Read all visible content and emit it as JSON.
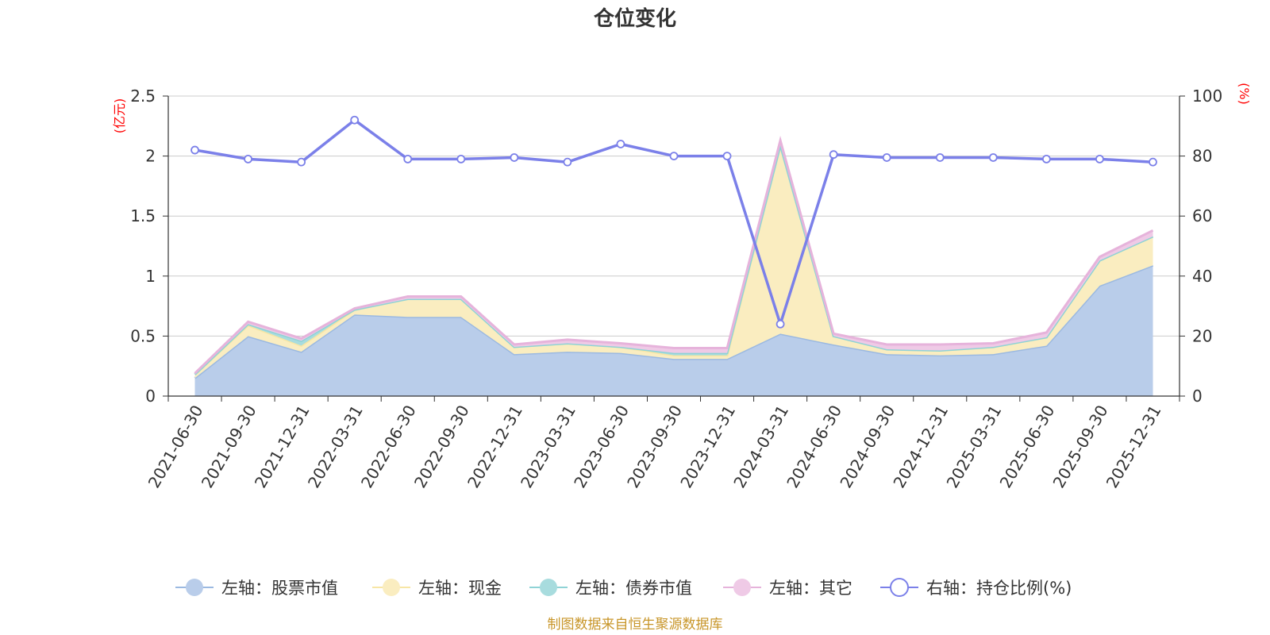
{
  "chart_data": {
    "type": "area",
    "title": "仓位变化",
    "y_left_unit": "(亿元)",
    "y_right_unit": "(%)",
    "ylim_left": [
      0,
      2.5
    ],
    "ylim_right": [
      0,
      100
    ],
    "y_left_ticks": [
      "0",
      "0.5",
      "1",
      "1.5",
      "2",
      "2.5"
    ],
    "y_right_ticks": [
      "0",
      "20",
      "40",
      "60",
      "80",
      "100"
    ],
    "categories": [
      "2021-06-30",
      "2021-09-30",
      "2021-12-31",
      "2022-03-31",
      "2022-06-30",
      "2022-09-30",
      "2022-12-31",
      "2023-03-31",
      "2023-06-30",
      "2023-09-30",
      "2023-12-31",
      "2024-03-31",
      "2024-06-30",
      "2024-09-30",
      "2024-12-31",
      "2025-03-31",
      "2025-06-30",
      "2025-09-30",
      "2025-12-31"
    ],
    "series": [
      {
        "name": "左轴：股票市值",
        "axis": "left",
        "stack": true,
        "color": "#9bb9e1",
        "fill": "#b9cdea",
        "values": [
          0.15,
          0.5,
          0.37,
          0.68,
          0.66,
          0.66,
          0.35,
          0.37,
          0.36,
          0.31,
          0.31,
          0.52,
          0.43,
          0.35,
          0.34,
          0.35,
          0.42,
          0.92,
          1.09
        ]
      },
      {
        "name": "左轴：现金",
        "axis": "left",
        "stack": true,
        "color": "#f7e6a5",
        "fill": "#faedc0",
        "values": [
          0.03,
          0.09,
          0.05,
          0.04,
          0.15,
          0.15,
          0.06,
          0.07,
          0.05,
          0.03,
          0.03,
          1.57,
          0.07,
          0.04,
          0.04,
          0.06,
          0.07,
          0.21,
          0.24
        ]
      },
      {
        "name": "左轴：债券市值",
        "axis": "left",
        "stack": true,
        "color": "#8fd3d6",
        "fill": "#a8dcde",
        "values": [
          0.0,
          0.01,
          0.04,
          0.0,
          0.0,
          0.0,
          0.0,
          0.0,
          0.0,
          0.02,
          0.02,
          0.0,
          0.0,
          0.0,
          0.0,
          0.0,
          0.0,
          0.0,
          0.0
        ]
      },
      {
        "name": "左轴：其它",
        "axis": "left",
        "stack": true,
        "color": "#e6b3db",
        "fill": "#efcae6",
        "values": [
          0.01,
          0.02,
          0.02,
          0.01,
          0.02,
          0.02,
          0.02,
          0.03,
          0.03,
          0.04,
          0.04,
          0.04,
          0.02,
          0.04,
          0.05,
          0.03,
          0.04,
          0.03,
          0.05
        ]
      },
      {
        "name": "右轴：持仓比例(%)",
        "axis": "right",
        "stack": false,
        "color": "#7b80e9",
        "values": [
          82,
          79,
          78,
          92,
          79,
          79,
          79.5,
          78,
          84,
          80,
          80,
          24,
          80.5,
          79.5,
          79.5,
          79.5,
          79,
          79,
          78
        ]
      }
    ],
    "legend_position": "bottom",
    "grid": true
  },
  "source_note": "制图数据来自恒生聚源数据库"
}
